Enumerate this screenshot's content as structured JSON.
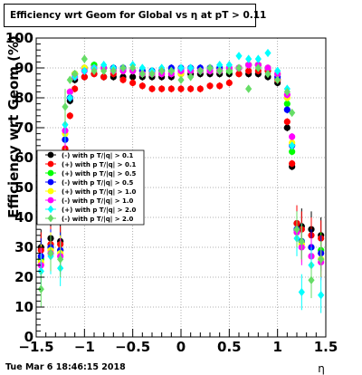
{
  "chart_data": {
    "type": "scatter",
    "title": "Efficiency wrt Geom for Global vs   η at pT > 0.11",
    "xlabel": "η",
    "ylabel": "Efficiency wrt Geom (%)",
    "xlim": [
      -1.5,
      1.5
    ],
    "ylim": [
      0,
      100
    ],
    "xticks": [
      "−1.5",
      "−1",
      "−0.5",
      "0",
      "0.5",
      "1",
      "1.5"
    ],
    "yticks": [
      "0",
      "10",
      "20",
      "30",
      "40",
      "50",
      "60",
      "70",
      "80",
      "90",
      "100"
    ],
    "grid": true,
    "legend_position": "middle-left",
    "timestamp": "Tue Mar  6 18:46:15 2018",
    "series": [
      {
        "name": "(-) with p T/|q| > 0.1",
        "color": "#000000",
        "marker": "circle",
        "x": [
          -1.45,
          -1.35,
          -1.25,
          -1.2,
          -1.15,
          -1.1,
          -1.0,
          -0.9,
          -0.8,
          -0.7,
          -0.6,
          -0.5,
          -0.4,
          -0.3,
          -0.2,
          -0.1,
          0.0,
          0.1,
          0.2,
          0.3,
          0.4,
          0.5,
          0.6,
          0.7,
          0.8,
          0.9,
          1.0,
          1.1,
          1.15,
          1.2,
          1.25,
          1.35,
          1.45
        ],
        "y": [
          30,
          33,
          32,
          62,
          79,
          86,
          87,
          88,
          87,
          87,
          87,
          87,
          87,
          87,
          87,
          87,
          88,
          88,
          88,
          88,
          88,
          88,
          88,
          88,
          88,
          87,
          85,
          70,
          57,
          38,
          37,
          36,
          34
        ]
      },
      {
        "name": "(+) with p T/|q| > 0.1",
        "color": "#ff0000",
        "marker": "circle",
        "x": [
          -1.45,
          -1.35,
          -1.25,
          -1.2,
          -1.15,
          -1.1,
          -1.0,
          -0.9,
          -0.8,
          -0.7,
          -0.6,
          -0.5,
          -0.4,
          -0.3,
          -0.2,
          -0.1,
          0.0,
          0.1,
          0.2,
          0.3,
          0.4,
          0.5,
          0.6,
          0.7,
          0.8,
          0.9,
          1.0,
          1.1,
          1.15,
          1.2,
          1.25,
          1.35,
          1.45
        ],
        "y": [
          29,
          31,
          31,
          63,
          74,
          83,
          87,
          88,
          87,
          88,
          86,
          85,
          84,
          83,
          83,
          83,
          83,
          83,
          83,
          84,
          84,
          85,
          88,
          89,
          89,
          89,
          86,
          72,
          58,
          38,
          36,
          34,
          33
        ]
      },
      {
        "name": "(+) with p T/|q| > 0.5",
        "color": "#00ff00",
        "marker": "circle",
        "x": [
          -1.45,
          -1.35,
          -1.25,
          -1.2,
          -1.15,
          -1.1,
          -1.0,
          -0.9,
          -0.8,
          -0.7,
          -0.6,
          -0.5,
          -0.4,
          -0.3,
          -0.2,
          -0.1,
          0.0,
          0.1,
          0.2,
          0.3,
          0.4,
          0.5,
          0.6,
          0.7,
          0.8,
          0.9,
          1.0,
          1.1,
          1.15,
          1.2,
          1.25,
          1.35,
          1.45
        ],
        "y": [
          26,
          30,
          29,
          66,
          80,
          88,
          90,
          91,
          90,
          90,
          90,
          89,
          89,
          89,
          88,
          89,
          89,
          89,
          89,
          89,
          89,
          89,
          90,
          91,
          91,
          90,
          88,
          78,
          62,
          36,
          32,
          30,
          29
        ]
      },
      {
        "name": "(-) with p T/|q| > 0.5",
        "color": "#0000ff",
        "marker": "circle",
        "x": [
          -1.45,
          -1.35,
          -1.25,
          -1.2,
          -1.15,
          -1.1,
          -1.0,
          -0.9,
          -0.8,
          -0.7,
          -0.6,
          -0.5,
          -0.4,
          -0.3,
          -0.2,
          -0.1,
          0.0,
          0.1,
          0.2,
          0.3,
          0.4,
          0.5,
          0.6,
          0.7,
          0.8,
          0.9,
          1.0,
          1.1,
          1.15,
          1.2,
          1.25,
          1.35,
          1.45
        ],
        "y": [
          27,
          30,
          29,
          66,
          80,
          88,
          90,
          90,
          90,
          90,
          90,
          89,
          89,
          89,
          89,
          90,
          90,
          90,
          90,
          90,
          90,
          90,
          90,
          91,
          91,
          90,
          87,
          76,
          64,
          36,
          32,
          30,
          28
        ]
      },
      {
        "name": "(+) with p T/|q| > 1.0",
        "color": "#ffff00",
        "marker": "circle",
        "x": [
          -1.45,
          -1.35,
          -1.25,
          -1.2,
          -1.15,
          -1.1,
          -1.0,
          -0.9,
          -0.8,
          -0.7,
          -0.6,
          -0.5,
          -0.4,
          -0.3,
          -0.2,
          -0.1,
          0.0,
          0.1,
          0.2,
          0.3,
          0.4,
          0.5,
          0.6,
          0.7,
          0.8,
          0.9,
          1.0,
          1.1,
          1.15,
          1.2,
          1.25,
          1.35,
          1.45
        ],
        "y": [
          25,
          29,
          28,
          68,
          82,
          88,
          90,
          90,
          90,
          89,
          89,
          89,
          88,
          88,
          88,
          88,
          88,
          89,
          89,
          89,
          89,
          90,
          90,
          91,
          91,
          90,
          88,
          80,
          65,
          35,
          31,
          27,
          26
        ]
      },
      {
        "name": "(-) with p T/|q| > 1.0",
        "color": "#ff00ff",
        "marker": "circle",
        "x": [
          -1.45,
          -1.35,
          -1.25,
          -1.2,
          -1.15,
          -1.1,
          -1.0,
          -0.9,
          -0.8,
          -0.7,
          -0.6,
          -0.5,
          -0.4,
          -0.3,
          -0.2,
          -0.1,
          0.0,
          0.1,
          0.2,
          0.3,
          0.4,
          0.5,
          0.6,
          0.7,
          0.8,
          0.9,
          1.0,
          1.1,
          1.15,
          1.2,
          1.25,
          1.35,
          1.45
        ],
        "y": [
          24,
          28,
          27,
          69,
          82,
          87,
          89,
          90,
          90,
          89,
          89,
          89,
          88,
          88,
          88,
          88,
          89,
          89,
          89,
          89,
          89,
          90,
          90,
          91,
          91,
          90,
          88,
          81,
          67,
          35,
          30,
          27,
          25
        ]
      },
      {
        "name": "(+) with p T/|q| > 2.0",
        "color": "#00ffff",
        "marker": "diamond",
        "x": [
          -1.45,
          -1.35,
          -1.25,
          -1.2,
          -1.15,
          -1.1,
          -1.0,
          -0.9,
          -0.8,
          -0.7,
          -0.6,
          -0.5,
          -0.4,
          -0.3,
          -0.2,
          -0.1,
          0.0,
          0.1,
          0.2,
          0.3,
          0.4,
          0.5,
          0.6,
          0.7,
          0.8,
          0.9,
          1.0,
          1.1,
          1.15,
          1.2,
          1.25,
          1.35,
          1.45
        ],
        "y": [
          22,
          27,
          23,
          71,
          80,
          87,
          89,
          90,
          91,
          90,
          90,
          91,
          90,
          89,
          90,
          89,
          90,
          90,
          89,
          90,
          91,
          91,
          94,
          93,
          93,
          95,
          89,
          83,
          64,
          33,
          15,
          24,
          14
        ]
      },
      {
        "name": "(-) with p T/|q| > 2.0",
        "color": "#66dd66",
        "marker": "diamond",
        "x": [
          -1.45,
          -1.35,
          -1.25,
          -1.2,
          -1.15,
          -1.1,
          -1.0,
          -0.9,
          -0.8,
          -0.7,
          -0.6,
          -0.5,
          -0.4,
          -0.3,
          -0.2,
          -0.1,
          0.0,
          0.1,
          0.2,
          0.3,
          0.4,
          0.5,
          0.6,
          0.7,
          0.8,
          0.9,
          1.0,
          1.1,
          1.15,
          1.2,
          1.25,
          1.35,
          1.45
        ],
        "y": [
          16,
          28,
          26,
          77,
          86,
          88,
          93,
          89,
          89,
          89,
          90,
          90,
          88,
          88,
          89,
          89,
          86,
          87,
          89,
          90,
          89,
          89,
          90,
          83,
          90,
          88,
          86,
          82,
          75,
          36,
          32,
          19,
          26
        ]
      }
    ]
  }
}
